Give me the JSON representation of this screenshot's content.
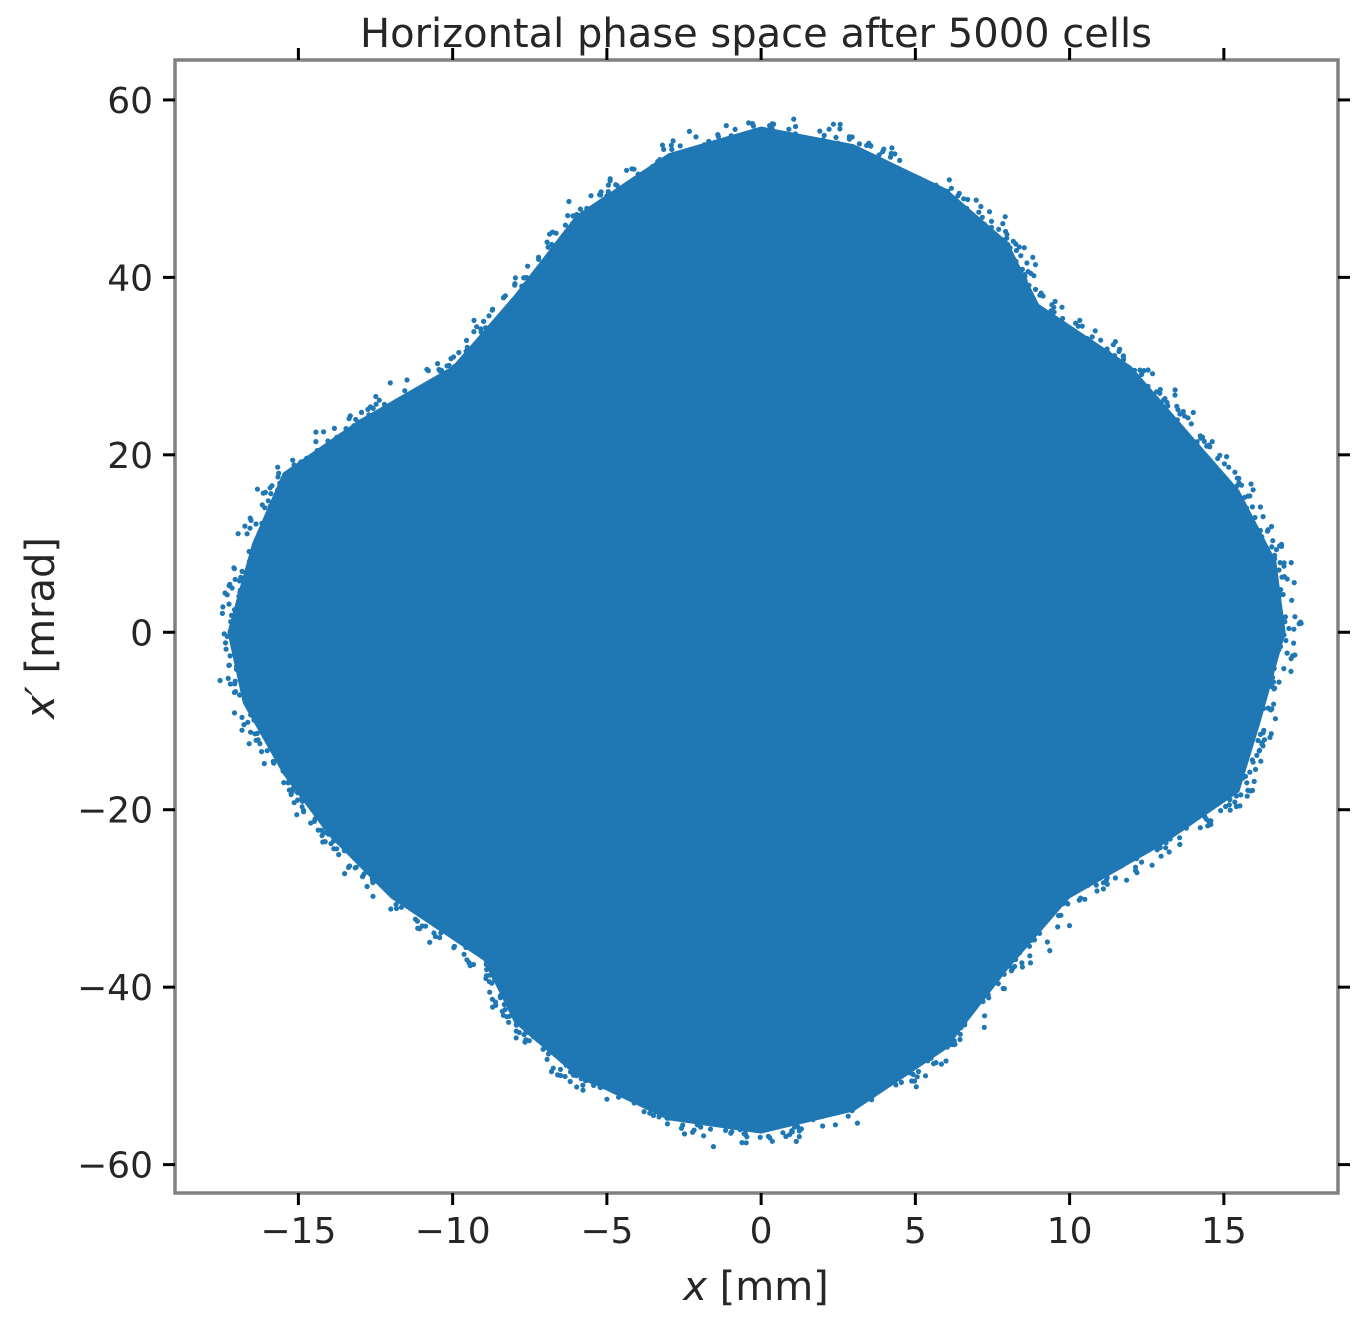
{
  "chart_data": {
    "type": "scatter",
    "title": "Horizontal phase space after 5000 cells",
    "xlabel": {
      "var": "x",
      "rest": " [mm]"
    },
    "ylabel": {
      "var": "x′",
      "rest": " [mrad]"
    },
    "xlim": [
      -19,
      18.7
    ],
    "ylim": [
      -63.2,
      64.5
    ],
    "xticks": [
      -15,
      -10,
      -5,
      0,
      5,
      10,
      15
    ],
    "yticks": [
      -60,
      -40,
      -20,
      0,
      20,
      40,
      60
    ],
    "xtick_labels": [
      "−15",
      "−10",
      "−5",
      "0",
      "5",
      "10",
      "15"
    ],
    "ytick_labels": [
      "−60",
      "−40",
      "−20",
      "0",
      "20",
      "40",
      "60"
    ],
    "grid": false,
    "colors": {
      "points": "#1f77b4",
      "frame": "#808080",
      "ticks": "#000000",
      "text": "#262626"
    },
    "distribution": {
      "x_extent": [
        -17.3,
        17.0
      ],
      "y_extent": [
        -57.5,
        58.5
      ],
      "boundary": [
        [
          -17.3,
          0
        ],
        [
          -16.5,
          10
        ],
        [
          -15.5,
          18
        ],
        [
          -13,
          24
        ],
        [
          -10,
          30
        ],
        [
          -8,
          38
        ],
        [
          -6,
          47
        ],
        [
          -3,
          54
        ],
        [
          0,
          57
        ],
        [
          3,
          55
        ],
        [
          6,
          50
        ],
        [
          8,
          44
        ],
        [
          9,
          37
        ],
        [
          12,
          30
        ],
        [
          14,
          22
        ],
        [
          15.5,
          16
        ],
        [
          16.7,
          8
        ],
        [
          17.0,
          0
        ],
        [
          16.2,
          -10
        ],
        [
          15.5,
          -18
        ],
        [
          13,
          -24
        ],
        [
          10,
          -30
        ],
        [
          8,
          -38
        ],
        [
          6,
          -47
        ],
        [
          3,
          -54
        ],
        [
          0,
          -56.5
        ],
        [
          -3,
          -55
        ],
        [
          -6,
          -50
        ],
        [
          -8,
          -44
        ],
        [
          -9,
          -37
        ],
        [
          -12,
          -30
        ],
        [
          -14,
          -23
        ],
        [
          -15.5,
          -16
        ],
        [
          -16.8,
          -8
        ]
      ]
    }
  }
}
